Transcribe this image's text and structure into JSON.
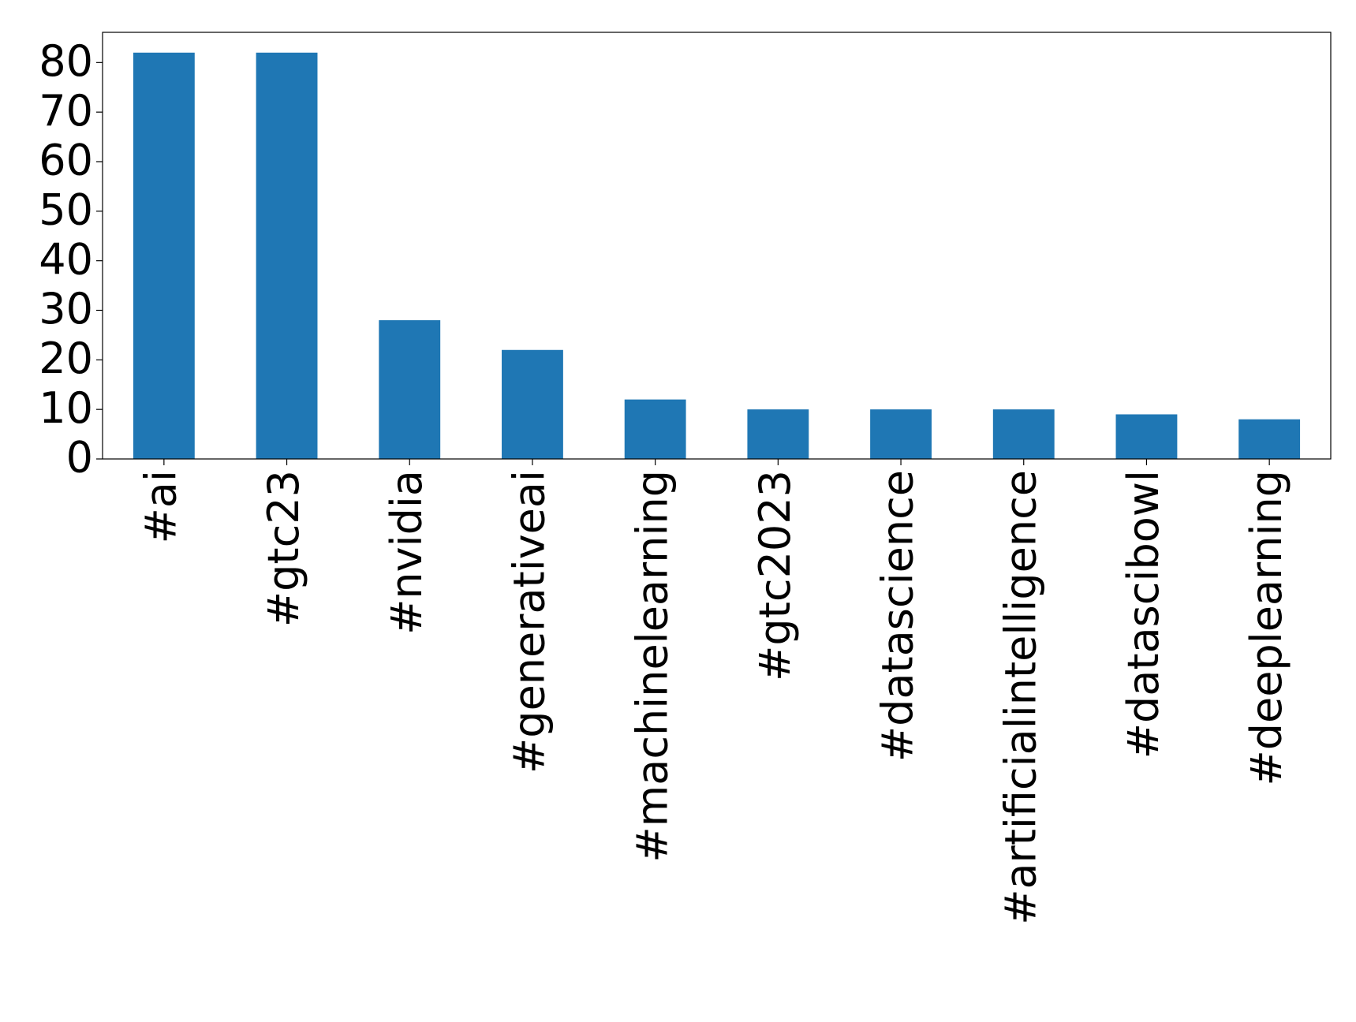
{
  "chart_data": {
    "type": "bar",
    "categories": [
      "#ai",
      "#gtc23",
      "#nvidia",
      "#generativeai",
      "#machinelearning",
      "#gtc2023",
      "#datascience",
      "#artificialintelligence",
      "#datascibowl",
      "#deeplearning"
    ],
    "values": [
      82,
      82,
      28,
      22,
      12,
      10,
      10,
      10,
      9,
      8
    ],
    "color": "#1f77b4",
    "ylim": [
      0,
      86.1
    ],
    "yticks": [
      0,
      10,
      20,
      30,
      40,
      50,
      60,
      70,
      80
    ],
    "grid": false
  }
}
